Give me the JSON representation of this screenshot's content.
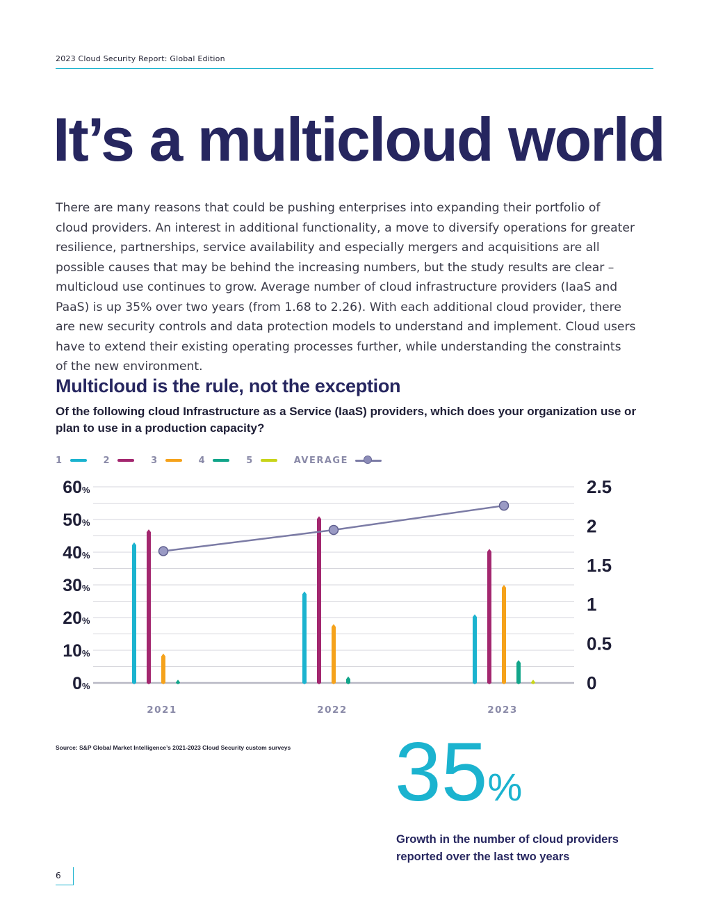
{
  "header": {
    "report_title": "2023 Cloud Security Report: Global Edition"
  },
  "page": {
    "title": "It’s a multicloud world",
    "intro": "There are many reasons that could be pushing enterprises into expanding their portfolio of cloud providers. An interest in additional functionality, a move to diversify operations for greater resilience, partnerships, service availability and especially mergers and acquisitions are all possible causes that may be behind the increasing numbers, but the study results are clear – multicloud use continues to grow. Average number of cloud infrastructure providers (IaaS and PaaS) is up 35% over two years (from 1.68 to 2.26). With each additional cloud provider, there are new security controls and data protection models to understand and implement. Cloud users have to extend their existing operating processes further, while understanding the constraints of the new environment.",
    "section_title": "Multicloud is the rule, not the exception",
    "question": "Of the following cloud Infrastructure as a Service (IaaS) providers, which does your organization use or plan to use in a production capacity?",
    "source": "Source: S&P Global Market Intelligence’s 2021-2023 Cloud Security custom surveys",
    "page_number": "6"
  },
  "stat": {
    "value": "35",
    "suffix": "%",
    "caption": "Growth in the number of cloud providers reported over the last two years"
  },
  "legend": [
    {
      "label": "1",
      "color": "#1bb3cf"
    },
    {
      "label": "2",
      "color": "#a3276f"
    },
    {
      "label": "3",
      "color": "#f5a21b"
    },
    {
      "label": "4",
      "color": "#12a58a"
    },
    {
      "label": "5",
      "color": "#c8d41a"
    }
  ],
  "legend_average_label": "AVERAGE",
  "colors": {
    "average_line": "#7b7ba5",
    "grid": "#c8c8d0",
    "axis_text": "#1e1e36",
    "category_text": "#8a8aa8"
  },
  "chart_data": {
    "type": "bar",
    "categories": [
      "2021",
      "2022",
      "2023"
    ],
    "series": [
      {
        "name": "1",
        "values": [
          43,
          28,
          21
        ]
      },
      {
        "name": "2",
        "values": [
          47,
          51,
          41
        ]
      },
      {
        "name": "3",
        "values": [
          9,
          18,
          30
        ]
      },
      {
        "name": "4",
        "values": [
          1,
          2,
          7
        ]
      },
      {
        "name": "5",
        "values": [
          0,
          0,
          1
        ]
      }
    ],
    "average": {
      "name": "AVERAGE",
      "axis": "right",
      "values": [
        1.68,
        1.95,
        2.26
      ]
    },
    "left_axis": {
      "ticks": [
        "0",
        "10",
        "20",
        "30",
        "40",
        "50",
        "60"
      ],
      "suffix": "%",
      "ylim": [
        0,
        60
      ]
    },
    "right_axis": {
      "ticks": [
        "0",
        "0.5",
        "1",
        "1.5",
        "2",
        "2.5"
      ],
      "ylim": [
        0,
        2.5
      ]
    },
    "grid": true
  }
}
